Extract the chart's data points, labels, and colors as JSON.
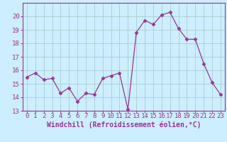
{
  "x": [
    0,
    1,
    2,
    3,
    4,
    5,
    6,
    7,
    8,
    9,
    10,
    11,
    12,
    13,
    14,
    15,
    16,
    17,
    18,
    19,
    20,
    21,
    22,
    23
  ],
  "y": [
    15.5,
    15.8,
    15.3,
    15.4,
    14.3,
    14.7,
    13.7,
    14.3,
    14.2,
    15.4,
    15.6,
    15.8,
    13.1,
    18.8,
    19.7,
    19.4,
    20.1,
    20.3,
    19.1,
    18.3,
    18.3,
    16.5,
    15.1,
    14.2
  ],
  "line_color": "#993399",
  "marker": "D",
  "marker_size": 2.5,
  "bg_color": "#cceeff",
  "grid_color": "#aacccc",
  "tick_color": "#993399",
  "label_color": "#993399",
  "xlabel": "Windchill (Refroidissement éolien,°C)",
  "ylabel": "",
  "ylim": [
    13,
    21
  ],
  "xlim": [
    -0.5,
    23.5
  ],
  "yticks": [
    13,
    14,
    15,
    16,
    17,
    18,
    19,
    20
  ],
  "xticks": [
    0,
    1,
    2,
    3,
    4,
    5,
    6,
    7,
    8,
    9,
    10,
    11,
    12,
    13,
    14,
    15,
    16,
    17,
    18,
    19,
    20,
    21,
    22,
    23
  ],
  "axis_fontsize": 6.5,
  "xlabel_fontsize": 7.0
}
